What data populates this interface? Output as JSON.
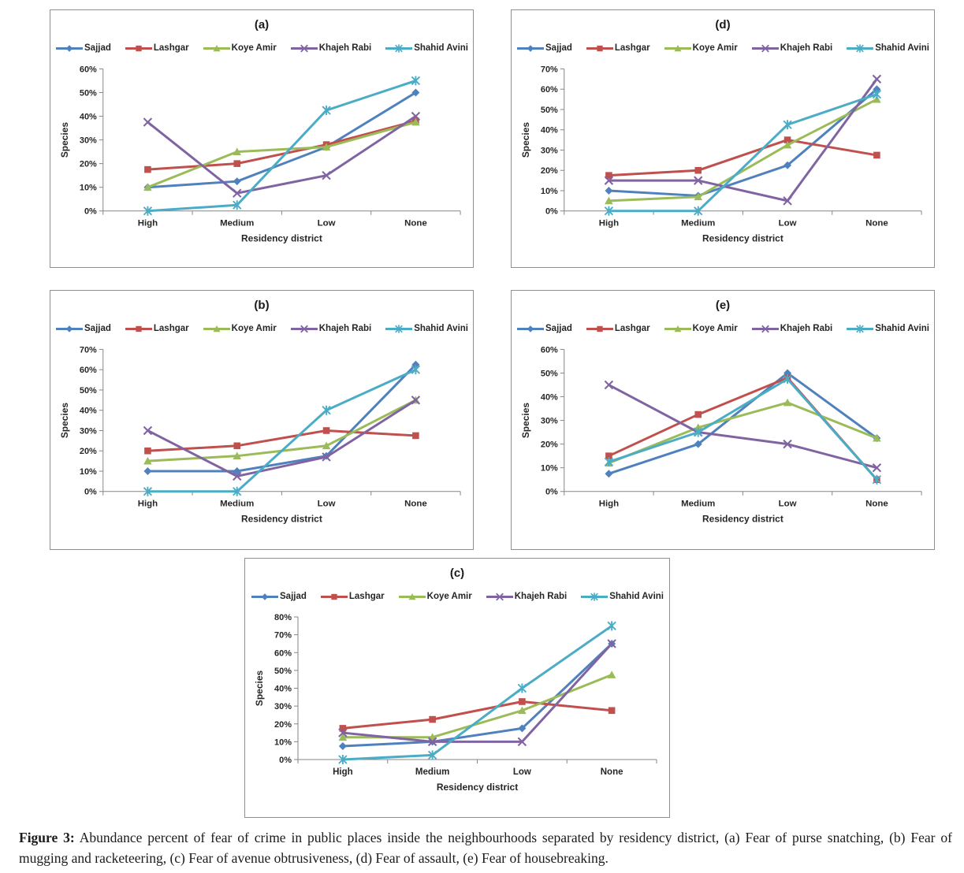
{
  "figure": {
    "caption_label": "Figure 3:",
    "caption_text": "Abundance percent of fear of crime in public places inside the neighbourhoods separated by residency district, (a) Fear of purse snatching, (b) Fear of mugging and racketeering, (c) Fear of avenue obtrusiveness, (d) Fear of assault, (e) Fear of housebreaking."
  },
  "chart_data": [
    {
      "id": "a",
      "type": "line",
      "title": "(a)",
      "categories": [
        "High",
        "Medium",
        "Low",
        "None"
      ],
      "xlabel": "Residency district",
      "ylabel": "Species",
      "ylim": [
        0,
        60
      ],
      "ytick_step": 10,
      "ytick_format": "percent",
      "grid": false,
      "legend_position": "top",
      "series": [
        {
          "name": "Sajjad",
          "color": "#4F81BD",
          "marker": "diamond",
          "values": [
            10,
            12.5,
            27,
            50
          ]
        },
        {
          "name": "Lashgar",
          "color": "#C0504D",
          "marker": "square",
          "values": [
            17.5,
            20,
            28,
            38
          ]
        },
        {
          "name": "Koye Amir",
          "color": "#9BBB59",
          "marker": "triangle",
          "values": [
            10,
            25,
            27,
            37.5
          ]
        },
        {
          "name": "Khajeh Rabi",
          "color": "#8064A2",
          "marker": "x",
          "values": [
            37.5,
            7.5,
            15,
            40
          ]
        },
        {
          "name": "Shahid Avini",
          "color": "#4BACC6",
          "marker": "star",
          "values": [
            0,
            2.5,
            42.5,
            55
          ]
        }
      ]
    },
    {
      "id": "d",
      "type": "line",
      "title": "(d)",
      "categories": [
        "High",
        "Medium",
        "Low",
        "None"
      ],
      "xlabel": "Residency district",
      "ylabel": "Species",
      "ylim": [
        0,
        70
      ],
      "ytick_step": 10,
      "ytick_format": "percent",
      "grid": false,
      "legend_position": "top",
      "series": [
        {
          "name": "Sajjad",
          "color": "#4F81BD",
          "marker": "diamond",
          "values": [
            10,
            7.5,
            22.5,
            60
          ]
        },
        {
          "name": "Lashgar",
          "color": "#C0504D",
          "marker": "square",
          "values": [
            17.5,
            20,
            35,
            27.5
          ]
        },
        {
          "name": "Koye Amir",
          "color": "#9BBB59",
          "marker": "triangle",
          "values": [
            5,
            7,
            32.5,
            55
          ]
        },
        {
          "name": "Khajeh Rabi",
          "color": "#8064A2",
          "marker": "x",
          "values": [
            15,
            15,
            5,
            65
          ]
        },
        {
          "name": "Shahid Avini",
          "color": "#4BACC6",
          "marker": "star",
          "values": [
            0,
            0,
            42.5,
            57.5
          ]
        }
      ]
    },
    {
      "id": "b",
      "type": "line",
      "title": "(b)",
      "categories": [
        "High",
        "Medium",
        "Low",
        "None"
      ],
      "xlabel": "Residency district",
      "ylabel": "Species",
      "ylim": [
        0,
        70
      ],
      "ytick_step": 10,
      "ytick_format": "percent",
      "grid": false,
      "legend_position": "top",
      "series": [
        {
          "name": "Sajjad",
          "color": "#4F81BD",
          "marker": "diamond",
          "values": [
            10,
            10,
            17.5,
            62.5
          ]
        },
        {
          "name": "Lashgar",
          "color": "#C0504D",
          "marker": "square",
          "values": [
            20,
            22.5,
            30,
            27.5
          ]
        },
        {
          "name": "Koye Amir",
          "color": "#9BBB59",
          "marker": "triangle",
          "values": [
            15,
            17.5,
            22.5,
            45
          ]
        },
        {
          "name": "Khajeh Rabi",
          "color": "#8064A2",
          "marker": "x",
          "values": [
            30,
            7.5,
            17,
            45
          ]
        },
        {
          "name": "Shahid Avini",
          "color": "#4BACC6",
          "marker": "star",
          "values": [
            0,
            0,
            40,
            60
          ]
        }
      ]
    },
    {
      "id": "e",
      "type": "line",
      "title": "(e)",
      "categories": [
        "High",
        "Medium",
        "Low",
        "None"
      ],
      "xlabel": "Residency district",
      "ylabel": "Species",
      "ylim": [
        0,
        60
      ],
      "ytick_step": 10,
      "ytick_format": "percent",
      "grid": false,
      "legend_position": "top",
      "series": [
        {
          "name": "Sajjad",
          "color": "#4F81BD",
          "marker": "diamond",
          "values": [
            7.5,
            20,
            50,
            22.5
          ]
        },
        {
          "name": "Lashgar",
          "color": "#C0504D",
          "marker": "square",
          "values": [
            15,
            32.5,
            48,
            5
          ]
        },
        {
          "name": "Koye Amir",
          "color": "#9BBB59",
          "marker": "triangle",
          "values": [
            12,
            27,
            37.5,
            22.5
          ]
        },
        {
          "name": "Khajeh Rabi",
          "color": "#8064A2",
          "marker": "x",
          "values": [
            45,
            25,
            20,
            10
          ]
        },
        {
          "name": "Shahid Avini",
          "color": "#4BACC6",
          "marker": "star",
          "values": [
            12.5,
            25,
            47.5,
            5
          ]
        }
      ]
    },
    {
      "id": "c",
      "type": "line",
      "title": "(c)",
      "categories": [
        "High",
        "Medium",
        "Low",
        "None"
      ],
      "xlabel": "Residency district",
      "ylabel": "Species",
      "ylim": [
        0,
        80
      ],
      "ytick_step": 10,
      "ytick_format": "percent",
      "grid": false,
      "legend_position": "top",
      "series": [
        {
          "name": "Sajjad",
          "color": "#4F81BD",
          "marker": "diamond",
          "values": [
            7.5,
            10,
            17.5,
            65
          ]
        },
        {
          "name": "Lashgar",
          "color": "#C0504D",
          "marker": "square",
          "values": [
            17.5,
            22.5,
            32.5,
            27.5
          ]
        },
        {
          "name": "Koye Amir",
          "color": "#9BBB59",
          "marker": "triangle",
          "values": [
            12.5,
            12.5,
            27.5,
            47.5
          ]
        },
        {
          "name": "Khajeh Rabi",
          "color": "#8064A2",
          "marker": "x",
          "values": [
            15,
            10,
            10,
            65
          ]
        },
        {
          "name": "Shahid Avini",
          "color": "#4BACC6",
          "marker": "star",
          "values": [
            0,
            2.5,
            40,
            75
          ]
        }
      ]
    }
  ]
}
